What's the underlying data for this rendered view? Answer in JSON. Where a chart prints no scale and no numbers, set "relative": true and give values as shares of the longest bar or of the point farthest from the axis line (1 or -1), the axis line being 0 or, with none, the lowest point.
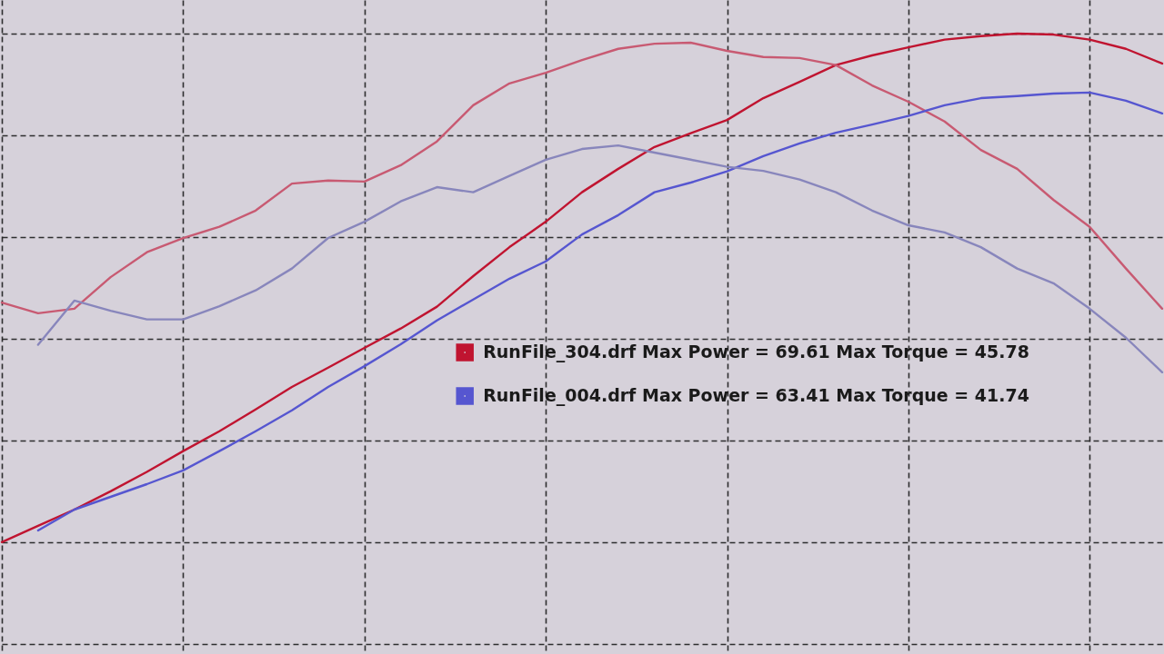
{
  "chart_data": {
    "type": "line",
    "relative": true,
    "grid": true,
    "legend": "center",
    "line_style": "solid",
    "categories": [
      null,
      null,
      null,
      null,
      null,
      null,
      null,
      null,
      null,
      null,
      null,
      null,
      null,
      null,
      null,
      null,
      null,
      null,
      null,
      null,
      null,
      null,
      null,
      null,
      null,
      null,
      null,
      null,
      null,
      null,
      null,
      null,
      null
    ],
    "series": [
      {
        "name": "RunFile_304.drf Max Power = 69.61 Max Torque = 45.78",
        "color": "#c01430",
        "values": [
          0,
          0.032,
          0.064,
          0.1,
          0.138,
          0.179,
          0.218,
          0.261,
          0.305,
          0.343,
          0.382,
          0.42,
          0.463,
          0.523,
          0.58,
          0.63,
          0.688,
          0.734,
          0.777,
          0.804,
          0.83,
          0.873,
          0.905,
          0.938,
          0.957,
          0.973,
          0.988,
          0.995,
          1,
          0.998,
          0.988,
          0.97,
          0.941
        ]
      },
      {
        "color": "#c85a72",
        "values": [
          0.471,
          0.45,
          0.459,
          0.521,
          0.57,
          0.598,
          0.62,
          0.652,
          0.705,
          0.711,
          0.709,
          0.741,
          0.788,
          0.859,
          0.902,
          0.923,
          0.948,
          0.97,
          0.98,
          0.982,
          0.966,
          0.954,
          0.952,
          0.938,
          0.898,
          0.866,
          0.827,
          0.771,
          0.734,
          0.673,
          0.62,
          0.538,
          0.459
        ]
      },
      {
        "name": "RunFile_004.drf Max Power = 63.41 Max Torque = 41.74",
        "color": "#5656d0",
        "values": [
          null,
          0.023,
          0.064,
          0.089,
          0.114,
          0.141,
          0.179,
          0.218,
          0.259,
          0.305,
          0.346,
          0.389,
          0.436,
          0.477,
          0.518,
          0.552,
          0.605,
          0.643,
          0.688,
          0.707,
          0.729,
          0.759,
          0.784,
          0.805,
          0.821,
          0.838,
          0.859,
          0.873,
          0.877,
          0.882,
          0.884,
          0.868,
          0.843
        ]
      },
      {
        "color": "#8886bc",
        "values": [
          null,
          0.388,
          0.475,
          0.455,
          0.438,
          0.438,
          0.464,
          0.495,
          0.538,
          0.598,
          0.63,
          0.67,
          0.698,
          0.688,
          0.72,
          0.752,
          0.773,
          0.78,
          0.766,
          0.752,
          0.738,
          0.73,
          0.713,
          0.688,
          0.652,
          0.623,
          0.609,
          0.58,
          0.538,
          0.509,
          0.459,
          0.402,
          0.334
        ]
      }
    ]
  }
}
